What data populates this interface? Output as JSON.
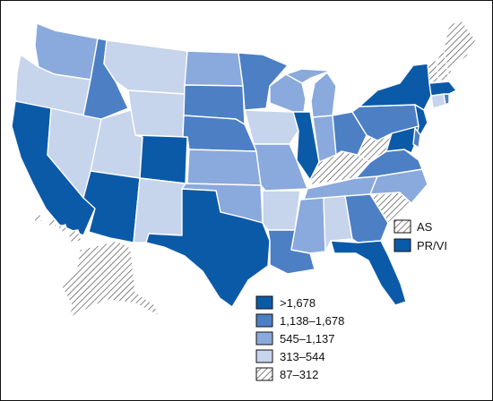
{
  "colors": {
    "c5": "#0b5aa8",
    "c4": "#4c7fc4",
    "c3": "#8aa9dc",
    "c2": "#c6d4ec",
    "c1": "hatch",
    "stroke": "#ffffff",
    "swatch_border": "#111111"
  },
  "legend": {
    "items": [
      {
        "key": "c5",
        "label": ">1,678"
      },
      {
        "key": "c4",
        "label": "1,138–1,678"
      },
      {
        "key": "c3",
        "label": "545–1,137"
      },
      {
        "key": "c2",
        "label": "313–544"
      },
      {
        "key": "c1",
        "label": "87–312"
      }
    ]
  },
  "territories": {
    "items": [
      {
        "key": "c1",
        "label": "AS"
      },
      {
        "key": "c5",
        "label": "PR/VI"
      }
    ]
  },
  "states": {
    "WA": "c3",
    "OR": "c2",
    "CA": "c5",
    "NV": "c2",
    "ID": "c4",
    "MT": "c2",
    "WY": "c2",
    "UT": "c2",
    "AZ": "c5",
    "CO": "c5",
    "NM": "c2",
    "ND": "c3",
    "SD": "c4",
    "NE": "c4",
    "KS": "c3",
    "OK": "c3",
    "TX": "c5",
    "MN": "c4",
    "IA": "c2",
    "MO": "c3",
    "AR": "c2",
    "LA": "c4",
    "WI": "c3",
    "IL": "c5",
    "MI": "c3",
    "IN": "c3",
    "OH": "c4",
    "KY": "c1",
    "TN": "c3",
    "MS": "c3",
    "AL": "c2",
    "GA": "c4",
    "FL": "c5",
    "SC": "c1",
    "NC": "c3",
    "VA": "c4",
    "WV": "c1",
    "PA": "c4",
    "NY": "c5",
    "NJ": "c5",
    "DE": "c4",
    "MD": "c5",
    "CT": "c2",
    "RI": "c4",
    "MA": "c5",
    "VT": "c1",
    "NH": "c1",
    "ME": "c1",
    "AK": "c1",
    "HI": "c1",
    "DC": "c4"
  }
}
